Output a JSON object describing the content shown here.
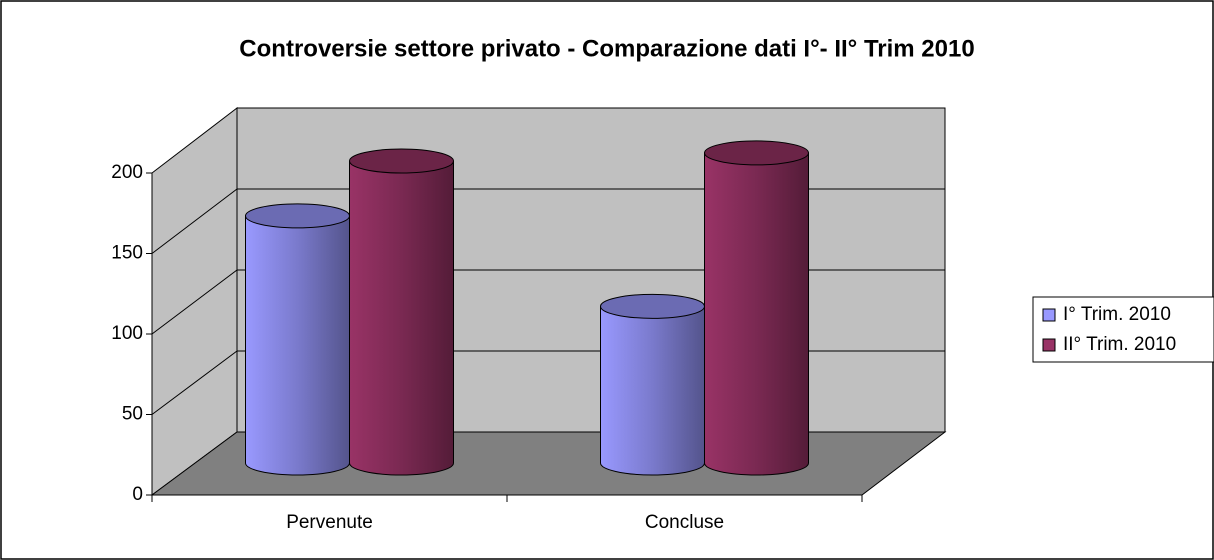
{
  "chart_data": {
    "type": "bar",
    "title": "Controversie settore privato - Comparazione dati  I°- II° Trim 2010",
    "categories": [
      "Pervenute",
      "Concluse"
    ],
    "series": [
      {
        "name": "I° Trim. 2010",
        "color": "#9999ff",
        "values": [
          153,
          97
        ]
      },
      {
        "name": "II° Trim. 2010",
        "color": "#993366",
        "values": [
          187,
          192
        ]
      }
    ],
    "ylim": [
      0,
      200
    ],
    "yticks": [
      0,
      50,
      100,
      150,
      200
    ],
    "grid": true,
    "legend": "right"
  }
}
